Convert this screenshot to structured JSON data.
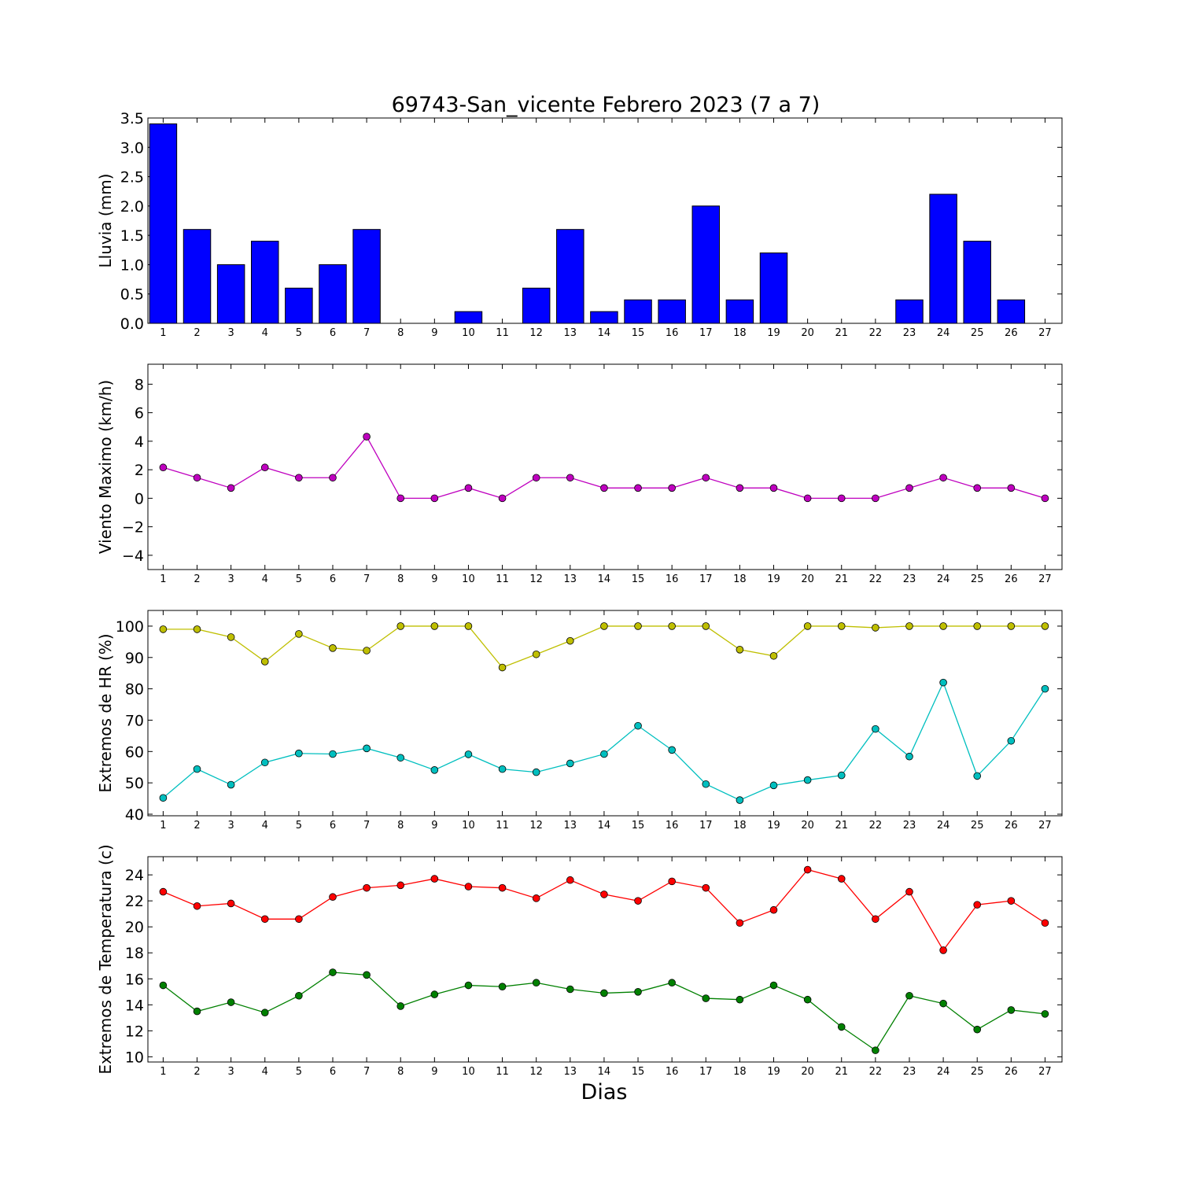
{
  "figure": {
    "title": "69743-San_vicente Febrero 2023  (7 a 7)",
    "xlabel": "Dias"
  },
  "chart_data": [
    {
      "type": "bar",
      "ylabel": "Lluvia (mm)",
      "x": [
        1,
        2,
        3,
        4,
        5,
        6,
        7,
        8,
        9,
        10,
        11,
        12,
        13,
        14,
        15,
        16,
        17,
        18,
        19,
        20,
        21,
        22,
        23,
        24,
        25,
        26,
        27
      ],
      "ylim": [
        0,
        3.5
      ],
      "yticks": [
        0.0,
        0.5,
        1.0,
        1.5,
        2.0,
        2.5,
        3.0,
        3.5
      ],
      "ytick_labels": [
        "0.0",
        "0.5",
        "1.0",
        "1.5",
        "2.0",
        "2.5",
        "3.0",
        "3.5"
      ],
      "grid": false,
      "series": [
        {
          "values": [
            3.4,
            1.6,
            1.0,
            1.4,
            0.6,
            1.0,
            1.6,
            0,
            0,
            0.2,
            0,
            0.6,
            1.6,
            0.2,
            0.4,
            0.4,
            2.0,
            0.4,
            1.2,
            0,
            0,
            0,
            0.4,
            2.2,
            1.4,
            0.4,
            0
          ],
          "color": "#0000ff"
        }
      ]
    },
    {
      "type": "line",
      "ylabel": "Viento Maximo (km/h)",
      "x": [
        1,
        2,
        3,
        4,
        5,
        6,
        7,
        8,
        9,
        10,
        11,
        12,
        13,
        14,
        15,
        16,
        17,
        18,
        19,
        20,
        21,
        22,
        23,
        24,
        25,
        26,
        27
      ],
      "ylim": [
        -5,
        9.4
      ],
      "yticks": [
        -4,
        -2,
        0,
        2,
        4,
        6,
        8
      ],
      "ytick_labels": [
        "−4",
        "−2",
        "0",
        "2",
        "4",
        "6",
        "8"
      ],
      "grid": false,
      "series": [
        {
          "values": [
            2.16,
            1.44,
            0.72,
            2.16,
            1.44,
            1.44,
            4.32,
            0,
            0,
            0.72,
            0,
            1.44,
            1.44,
            0.72,
            0.72,
            0.72,
            1.44,
            0.72,
            0.72,
            0,
            0,
            0,
            0.72,
            1.44,
            0.72,
            0.72,
            0
          ],
          "color": "#bf00bf"
        }
      ]
    },
    {
      "type": "line",
      "ylabel": "Extremos de HR (%)",
      "x": [
        1,
        2,
        3,
        4,
        5,
        6,
        7,
        8,
        9,
        10,
        11,
        12,
        13,
        14,
        15,
        16,
        17,
        18,
        19,
        20,
        21,
        22,
        23,
        24,
        25,
        26,
        27
      ],
      "ylim": [
        39.5,
        105
      ],
      "yticks": [
        40,
        50,
        60,
        70,
        80,
        90,
        100
      ],
      "ytick_labels": [
        "40",
        "50",
        "60",
        "70",
        "80",
        "90",
        "100"
      ],
      "grid": false,
      "series": [
        {
          "values": [
            99,
            99,
            96.5,
            88.7,
            97.5,
            93,
            92.2,
            100,
            100,
            100,
            86.8,
            91,
            95.3,
            100,
            100,
            100,
            100,
            92.5,
            90.5,
            100,
            100,
            99.5,
            100,
            100,
            100,
            100,
            100
          ],
          "color": "#bfbf00"
        },
        {
          "values": [
            45.2,
            54.4,
            49.4,
            56.5,
            59.4,
            59.2,
            61,
            58,
            54.1,
            59.1,
            54.4,
            53.4,
            56.2,
            59.2,
            68.2,
            60.5,
            49.6,
            44.5,
            49.2,
            50.9,
            52.4,
            67.2,
            58.4,
            82,
            52.2,
            63.4,
            80
          ],
          "color": "#00bfbf"
        }
      ]
    },
    {
      "type": "line",
      "ylabel": "Extremos de Temperatura (c)",
      "x": [
        1,
        2,
        3,
        4,
        5,
        6,
        7,
        8,
        9,
        10,
        11,
        12,
        13,
        14,
        15,
        16,
        17,
        18,
        19,
        20,
        21,
        22,
        23,
        24,
        25,
        26,
        27
      ],
      "ylim": [
        9.6,
        25.4
      ],
      "yticks": [
        10,
        12,
        14,
        16,
        18,
        20,
        22,
        24
      ],
      "ytick_labels": [
        "10",
        "12",
        "14",
        "16",
        "18",
        "20",
        "22",
        "24"
      ],
      "grid": false,
      "series": [
        {
          "values": [
            22.7,
            21.6,
            21.8,
            20.6,
            20.6,
            22.3,
            23,
            23.2,
            23.7,
            23.1,
            23,
            22.2,
            23.6,
            22.5,
            22,
            23.5,
            23,
            20.3,
            21.3,
            24.4,
            23.7,
            20.6,
            22.7,
            18.2,
            21.7,
            22,
            20.3
          ],
          "color": "#ff0000"
        },
        {
          "values": [
            15.5,
            13.5,
            14.2,
            13.4,
            14.7,
            16.5,
            16.3,
            13.9,
            14.8,
            15.5,
            15.4,
            15.7,
            15.2,
            14.9,
            15,
            15.7,
            14.5,
            14.4,
            15.5,
            14.4,
            12.3,
            10.5,
            14.7,
            14.1,
            12.1,
            13.6,
            13.3
          ],
          "color": "#008000"
        }
      ]
    }
  ]
}
